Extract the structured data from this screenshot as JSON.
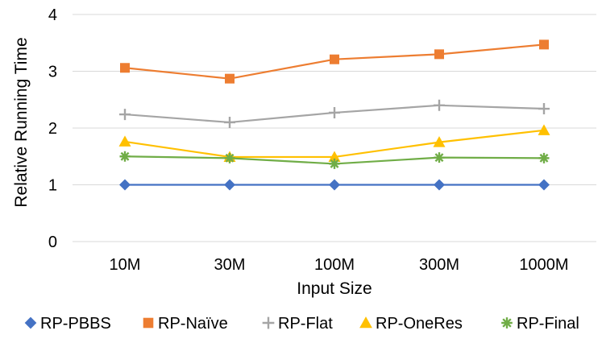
{
  "chart_data": {
    "type": "line",
    "title": "",
    "xlabel": "Input Size",
    "ylabel": "Relative Running Time",
    "categories": [
      "10M",
      "30M",
      "100M",
      "300M",
      "1000M"
    ],
    "ylim": [
      0,
      4
    ],
    "yticks": [
      "0",
      "1",
      "2",
      "3",
      "4"
    ],
    "grid": true,
    "legend_position": "bottom",
    "series": [
      {
        "name": "RP-PBBS",
        "values": [
          1.0,
          1.0,
          1.0,
          1.0,
          1.0
        ],
        "color": "#4472C4",
        "marker": "diamond"
      },
      {
        "name": "RP-Naïve",
        "values": [
          3.06,
          2.87,
          3.21,
          3.3,
          3.47
        ],
        "color": "#ED7D31",
        "marker": "square"
      },
      {
        "name": "RP-Flat",
        "values": [
          2.24,
          2.1,
          2.27,
          2.4,
          2.34
        ],
        "color": "#A5A5A5",
        "marker": "plus"
      },
      {
        "name": "RP-OneRes",
        "values": [
          1.76,
          1.49,
          1.49,
          1.75,
          1.96
        ],
        "color": "#FFC000",
        "marker": "triangle"
      },
      {
        "name": "RP-Final",
        "values": [
          1.5,
          1.47,
          1.37,
          1.48,
          1.47
        ],
        "color": "#70AD47",
        "marker": "star"
      }
    ]
  }
}
